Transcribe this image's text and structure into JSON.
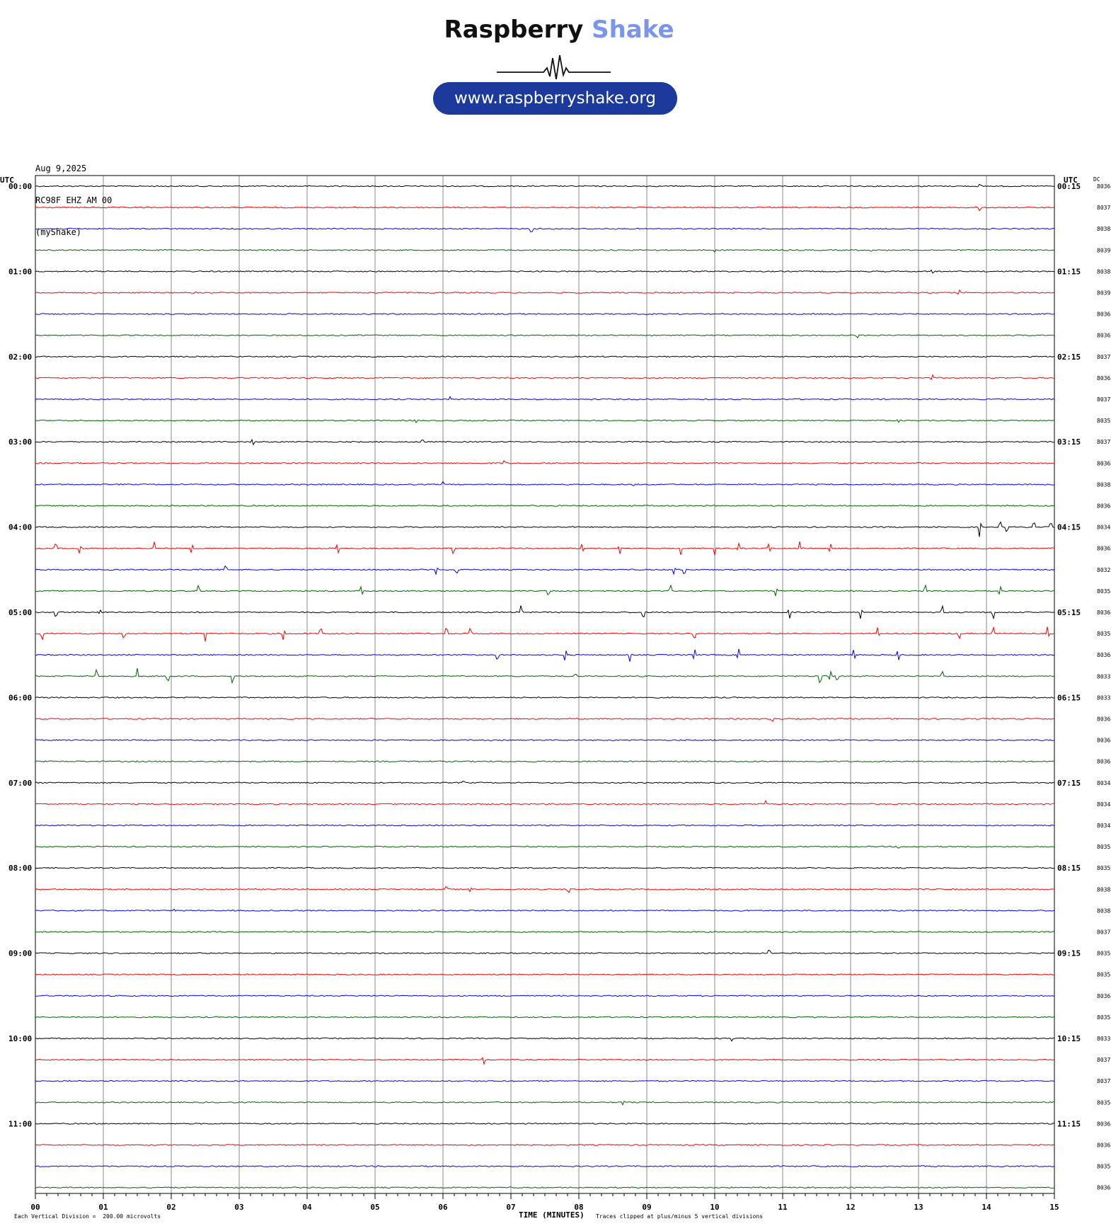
{
  "logo": {
    "brand_word1": "Raspberry",
    "brand_word2": "Shake",
    "url": "www.raspberryshake.org",
    "icon": "seismogram-wave-icon"
  },
  "header": {
    "date": "Aug 9,2025",
    "station": "RC98F EHZ AM 00",
    "source": "(myShake)"
  },
  "footer": {
    "scale_note": "Each Vertical Division =  200.00 microvolts",
    "xlabel": "TIME (MINUTES)",
    "clip_note": "Traces clipped at plus/minus 5 vertical divisions"
  },
  "chart_data": {
    "type": "line",
    "title": "",
    "xlabel": "TIME (MINUTES)",
    "left_axis_label": "UTC",
    "right_axis_label": "UTC",
    "dc_label": "DC",
    "xlim": [
      0,
      15
    ],
    "x_ticks": [
      "00",
      "01",
      "02",
      "03",
      "04",
      "05",
      "06",
      "07",
      "08",
      "09",
      "10",
      "11",
      "12",
      "13",
      "14",
      "15"
    ],
    "left_hour_labels": [
      "00:00",
      "01:00",
      "02:00",
      "03:00",
      "04:00",
      "05:00",
      "06:00",
      "07:00",
      "08:00",
      "09:00",
      "10:00",
      "11:00"
    ],
    "right_hour_labels": [
      "00:15",
      "01:15",
      "02:15",
      "03:15",
      "04:15",
      "05:15",
      "06:15",
      "07:15",
      "08:15",
      "09:15",
      "10:15",
      "11:15"
    ],
    "trace_colors": [
      "#000000",
      "#ff0000",
      "#0000ff",
      "#006400"
    ],
    "dc_values": [
      "8036",
      "8037",
      "8038",
      "8039",
      "8038",
      "8039",
      "8036",
      "8036",
      "8037",
      "8036",
      "8037",
      "8035",
      "8037",
      "8036",
      "8038",
      "8036",
      "8034",
      "8036",
      "8032",
      "8035",
      "8036",
      "8035",
      "8036",
      "8033",
      "8033",
      "8036",
      "8036",
      "8036",
      "8034",
      "8034",
      "8034",
      "8035",
      "8035",
      "8038",
      "8038",
      "8037",
      "8035",
      "8035",
      "8036",
      "8035",
      "8033",
      "8037",
      "8037",
      "8035",
      "8036",
      "8036",
      "8035",
      "8036"
    ],
    "events": [
      {
        "trace": 0,
        "minute": 13.9,
        "amp": 3
      },
      {
        "trace": 1,
        "minute": 13.9,
        "amp": 5
      },
      {
        "trace": 2,
        "minute": 7.3,
        "amp": 7
      },
      {
        "trace": 3,
        "minute": 10.0,
        "amp": 3
      },
      {
        "trace": 3,
        "minute": 12.3,
        "amp": 3
      },
      {
        "trace": 4,
        "minute": 13.2,
        "amp": 4
      },
      {
        "trace": 5,
        "minute": 13.6,
        "amp": 4
      },
      {
        "trace": 7,
        "minute": 12.1,
        "amp": 4
      },
      {
        "trace": 9,
        "minute": 13.2,
        "amp": 6
      },
      {
        "trace": 10,
        "minute": 6.1,
        "amp": 4
      },
      {
        "trace": 11,
        "minute": 5.6,
        "amp": 3
      },
      {
        "trace": 11,
        "minute": 12.7,
        "amp": 3
      },
      {
        "trace": 12,
        "minute": 3.2,
        "amp": 6
      },
      {
        "trace": 12,
        "minute": 5.7,
        "amp": 4
      },
      {
        "trace": 13,
        "minute": 6.9,
        "amp": 4
      },
      {
        "trace": 14,
        "minute": 6.0,
        "amp": 4
      },
      {
        "trace": 14,
        "minute": 8.8,
        "amp": 3
      },
      {
        "trace": 16,
        "minute": 13.9,
        "amp": 16
      },
      {
        "trace": 16,
        "minute": 14.2,
        "amp": 10
      },
      {
        "trace": 16,
        "minute": 14.3,
        "amp": 9
      },
      {
        "trace": 16,
        "minute": 14.7,
        "amp": 9
      },
      {
        "trace": 16,
        "minute": 14.95,
        "amp": 9
      },
      {
        "trace": 17,
        "minute": 0.3,
        "amp": 9
      },
      {
        "trace": 17,
        "minute": 0.65,
        "amp": 9
      },
      {
        "trace": 17,
        "minute": 1.75,
        "amp": 9
      },
      {
        "trace": 17,
        "minute": 2.3,
        "amp": 9
      },
      {
        "trace": 17,
        "minute": 4.45,
        "amp": 9
      },
      {
        "trace": 17,
        "minute": 6.15,
        "amp": 9
      },
      {
        "trace": 17,
        "minute": 8.05,
        "amp": 9
      },
      {
        "trace": 17,
        "minute": 8.6,
        "amp": 9
      },
      {
        "trace": 17,
        "minute": 9.5,
        "amp": 9
      },
      {
        "trace": 17,
        "minute": 10.0,
        "amp": 9
      },
      {
        "trace": 17,
        "minute": 10.35,
        "amp": 9
      },
      {
        "trace": 17,
        "minute": 10.8,
        "amp": 9
      },
      {
        "trace": 17,
        "minute": 11.25,
        "amp": 9
      },
      {
        "trace": 17,
        "minute": 11.7,
        "amp": 9
      },
      {
        "trace": 18,
        "minute": 2.8,
        "amp": 9
      },
      {
        "trace": 18,
        "minute": 5.9,
        "amp": 7
      },
      {
        "trace": 18,
        "minute": 6.2,
        "amp": 7
      },
      {
        "trace": 18,
        "minute": 9.4,
        "amp": 7
      },
      {
        "trace": 18,
        "minute": 9.55,
        "amp": 9
      },
      {
        "trace": 19,
        "minute": 2.4,
        "amp": 9
      },
      {
        "trace": 19,
        "minute": 4.8,
        "amp": 9
      },
      {
        "trace": 19,
        "minute": 7.55,
        "amp": 8
      },
      {
        "trace": 19,
        "minute": 9.35,
        "amp": 9
      },
      {
        "trace": 19,
        "minute": 10.9,
        "amp": 9
      },
      {
        "trace": 19,
        "minute": 13.1,
        "amp": 9
      },
      {
        "trace": 19,
        "minute": 14.2,
        "amp": 9
      },
      {
        "trace": 20,
        "minute": 0.3,
        "amp": 9
      },
      {
        "trace": 20,
        "minute": 0.95,
        "amp": 4
      },
      {
        "trace": 20,
        "minute": 7.15,
        "amp": 11
      },
      {
        "trace": 20,
        "minute": 8.95,
        "amp": 11
      },
      {
        "trace": 20,
        "minute": 11.1,
        "amp": 11
      },
      {
        "trace": 20,
        "minute": 12.15,
        "amp": 11
      },
      {
        "trace": 20,
        "minute": 13.35,
        "amp": 10
      },
      {
        "trace": 20,
        "minute": 14.1,
        "amp": 10
      },
      {
        "trace": 21,
        "minute": 0.1,
        "amp": 11
      },
      {
        "trace": 21,
        "minute": 1.3,
        "amp": 9
      },
      {
        "trace": 21,
        "minute": 2.5,
        "amp": 11
      },
      {
        "trace": 21,
        "minute": 3.65,
        "amp": 11
      },
      {
        "trace": 21,
        "minute": 4.2,
        "amp": 11
      },
      {
        "trace": 21,
        "minute": 6.05,
        "amp": 11
      },
      {
        "trace": 21,
        "minute": 6.4,
        "amp": 9
      },
      {
        "trace": 21,
        "minute": 9.7,
        "amp": 9
      },
      {
        "trace": 21,
        "minute": 12.4,
        "amp": 10
      },
      {
        "trace": 21,
        "minute": 13.6,
        "amp": 9
      },
      {
        "trace": 21,
        "minute": 14.1,
        "amp": 11
      },
      {
        "trace": 21,
        "minute": 14.9,
        "amp": 11
      },
      {
        "trace": 22,
        "minute": 6.8,
        "amp": 10
      },
      {
        "trace": 22,
        "minute": 7.8,
        "amp": 11
      },
      {
        "trace": 22,
        "minute": 8.75,
        "amp": 10
      },
      {
        "trace": 22,
        "minute": 9.7,
        "amp": 11
      },
      {
        "trace": 22,
        "minute": 10.35,
        "amp": 11
      },
      {
        "trace": 22,
        "minute": 12.05,
        "amp": 10
      },
      {
        "trace": 22,
        "minute": 12.7,
        "amp": 10
      },
      {
        "trace": 23,
        "minute": 0.9,
        "amp": 11
      },
      {
        "trace": 23,
        "minute": 1.5,
        "amp": 11
      },
      {
        "trace": 23,
        "minute": 1.95,
        "amp": 11
      },
      {
        "trace": 23,
        "minute": 2.9,
        "amp": 11
      },
      {
        "trace": 23,
        "minute": 7.95,
        "amp": 4
      },
      {
        "trace": 23,
        "minute": 11.55,
        "amp": 14
      },
      {
        "trace": 23,
        "minute": 11.7,
        "amp": 9
      },
      {
        "trace": 23,
        "minute": 11.8,
        "amp": 9
      },
      {
        "trace": 23,
        "minute": 13.35,
        "amp": 8
      },
      {
        "trace": 25,
        "minute": 10.85,
        "amp": 4
      },
      {
        "trace": 28,
        "minute": 6.3,
        "amp": 4
      },
      {
        "trace": 29,
        "minute": 10.75,
        "amp": 4
      },
      {
        "trace": 31,
        "minute": 12.7,
        "amp": 4
      },
      {
        "trace": 33,
        "minute": 6.05,
        "amp": 5
      },
      {
        "trace": 33,
        "minute": 6.4,
        "amp": 4
      },
      {
        "trace": 33,
        "minute": 7.85,
        "amp": 6
      },
      {
        "trace": 34,
        "minute": 2.05,
        "amp": 3
      },
      {
        "trace": 36,
        "minute": 10.8,
        "amp": 6
      },
      {
        "trace": 40,
        "minute": 10.25,
        "amp": 4
      },
      {
        "trace": 41,
        "minute": 6.6,
        "amp": 7
      },
      {
        "trace": 43,
        "minute": 8.65,
        "amp": 5
      }
    ]
  }
}
